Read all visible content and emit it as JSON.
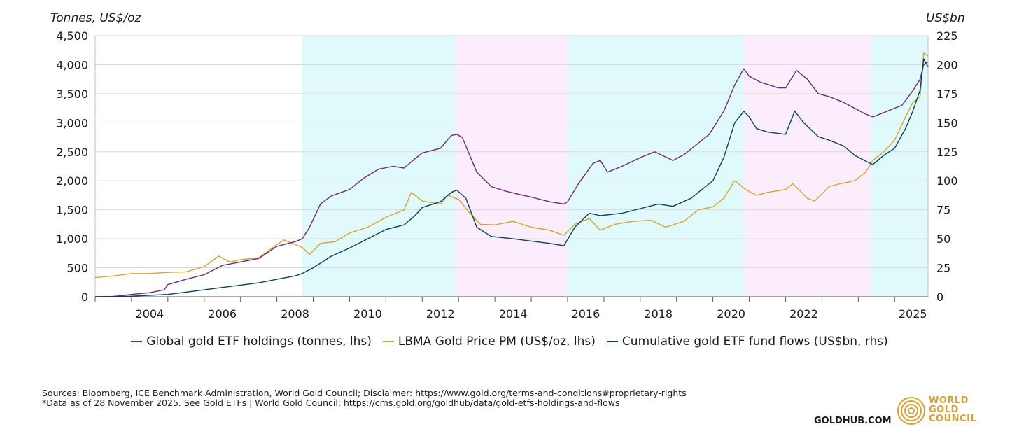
{
  "chart_data": {
    "type": "line",
    "left_axis_title": "Tonnes, US$/oz",
    "right_axis_title": "US$bn",
    "ylim_left": [
      0,
      4500
    ],
    "ylim_right": [
      0,
      225
    ],
    "xlim": [
      2003.0,
      2025.92
    ],
    "left_ticks": [
      "0",
      "500",
      "1,000",
      "1,500",
      "2,000",
      "2,500",
      "3,000",
      "3,500",
      "4,000",
      "4,500"
    ],
    "left_tick_values": [
      0,
      500,
      1000,
      1500,
      2000,
      2500,
      3000,
      3500,
      4000,
      4500
    ],
    "right_ticks": [
      "0",
      "25",
      "50",
      "75",
      "100",
      "125",
      "150",
      "175",
      "200",
      "225"
    ],
    "right_tick_values": [
      0,
      25,
      50,
      75,
      100,
      125,
      150,
      175,
      200,
      225
    ],
    "x_ticks": [
      "2004",
      "2006",
      "2008",
      "2010",
      "2012",
      "2014",
      "2016",
      "2018",
      "2020",
      "2022",
      "2025"
    ],
    "x_tick_values": [
      2004,
      2006,
      2008,
      2010,
      2012,
      2014,
      2016,
      2018,
      2020,
      2022,
      2025
    ],
    "shaded_periods": [
      {
        "start": 2008.7,
        "end": 2012.9,
        "color": "#e0fafb"
      },
      {
        "start": 2012.9,
        "end": 2016.0,
        "color": "#fbedfb"
      },
      {
        "start": 2016.0,
        "end": 2020.85,
        "color": "#e0fafb"
      },
      {
        "start": 2020.85,
        "end": 2024.35,
        "color": "#fbedfb"
      },
      {
        "start": 2024.35,
        "end": 2025.92,
        "color": "#e0fafb"
      }
    ],
    "series": [
      {
        "name": "Global gold ETF holdings (tonnes, lhs)",
        "axis": "left",
        "color": "#6b2c73",
        "points": [
          [
            2003.0,
            0
          ],
          [
            2003.5,
            5
          ],
          [
            2004.0,
            40
          ],
          [
            2004.5,
            70
          ],
          [
            2004.9,
            120
          ],
          [
            2005.0,
            210
          ],
          [
            2005.5,
            300
          ],
          [
            2006.0,
            380
          ],
          [
            2006.5,
            540
          ],
          [
            2007.0,
            600
          ],
          [
            2007.5,
            660
          ],
          [
            2008.0,
            870
          ],
          [
            2008.5,
            950
          ],
          [
            2008.7,
            1000
          ],
          [
            2008.9,
            1200
          ],
          [
            2009.2,
            1600
          ],
          [
            2009.5,
            1740
          ],
          [
            2010.0,
            1850
          ],
          [
            2010.4,
            2050
          ],
          [
            2010.8,
            2200
          ],
          [
            2011.2,
            2250
          ],
          [
            2011.5,
            2220
          ],
          [
            2011.8,
            2380
          ],
          [
            2012.0,
            2480
          ],
          [
            2012.5,
            2560
          ],
          [
            2012.8,
            2780
          ],
          [
            2012.95,
            2800
          ],
          [
            2013.1,
            2750
          ],
          [
            2013.5,
            2150
          ],
          [
            2013.9,
            1900
          ],
          [
            2014.3,
            1820
          ],
          [
            2014.7,
            1760
          ],
          [
            2015.0,
            1720
          ],
          [
            2015.5,
            1640
          ],
          [
            2015.9,
            1600
          ],
          [
            2016.0,
            1640
          ],
          [
            2016.3,
            1950
          ],
          [
            2016.7,
            2300
          ],
          [
            2016.9,
            2350
          ],
          [
            2017.1,
            2150
          ],
          [
            2017.5,
            2250
          ],
          [
            2018.0,
            2400
          ],
          [
            2018.4,
            2500
          ],
          [
            2018.9,
            2350
          ],
          [
            2019.2,
            2450
          ],
          [
            2019.5,
            2600
          ],
          [
            2019.9,
            2800
          ],
          [
            2020.3,
            3200
          ],
          [
            2020.6,
            3650
          ],
          [
            2020.85,
            3930
          ],
          [
            2021.0,
            3800
          ],
          [
            2021.3,
            3700
          ],
          [
            2021.8,
            3600
          ],
          [
            2022.0,
            3600
          ],
          [
            2022.3,
            3900
          ],
          [
            2022.6,
            3750
          ],
          [
            2022.9,
            3500
          ],
          [
            2023.2,
            3450
          ],
          [
            2023.6,
            3350
          ],
          [
            2023.9,
            3250
          ],
          [
            2024.2,
            3150
          ],
          [
            2024.4,
            3100
          ],
          [
            2024.8,
            3200
          ],
          [
            2025.2,
            3300
          ],
          [
            2025.5,
            3550
          ],
          [
            2025.7,
            3750
          ],
          [
            2025.8,
            4000
          ],
          [
            2025.92,
            4050
          ]
        ]
      },
      {
        "name": "LBMA Gold Price PM (US$/oz, lhs)",
        "axis": "left",
        "color": "#d4a336",
        "points": [
          [
            2003.0,
            330
          ],
          [
            2003.5,
            360
          ],
          [
            2004.0,
            400
          ],
          [
            2004.5,
            400
          ],
          [
            2005.0,
            420
          ],
          [
            2005.5,
            430
          ],
          [
            2006.0,
            520
          ],
          [
            2006.4,
            700
          ],
          [
            2006.7,
            600
          ],
          [
            2007.0,
            640
          ],
          [
            2007.5,
            670
          ],
          [
            2008.0,
            900
          ],
          [
            2008.2,
            980
          ],
          [
            2008.7,
            850
          ],
          [
            2008.9,
            730
          ],
          [
            2009.2,
            920
          ],
          [
            2009.6,
            950
          ],
          [
            2010.0,
            1100
          ],
          [
            2010.5,
            1200
          ],
          [
            2011.0,
            1370
          ],
          [
            2011.5,
            1500
          ],
          [
            2011.7,
            1800
          ],
          [
            2012.0,
            1650
          ],
          [
            2012.5,
            1600
          ],
          [
            2012.7,
            1750
          ],
          [
            2013.0,
            1680
          ],
          [
            2013.3,
            1450
          ],
          [
            2013.6,
            1250
          ],
          [
            2014.0,
            1240
          ],
          [
            2014.5,
            1300
          ],
          [
            2015.0,
            1200
          ],
          [
            2015.5,
            1150
          ],
          [
            2015.9,
            1060
          ],
          [
            2016.2,
            1250
          ],
          [
            2016.6,
            1350
          ],
          [
            2016.9,
            1150
          ],
          [
            2017.3,
            1250
          ],
          [
            2017.8,
            1300
          ],
          [
            2018.3,
            1320
          ],
          [
            2018.7,
            1200
          ],
          [
            2019.2,
            1300
          ],
          [
            2019.6,
            1500
          ],
          [
            2020.0,
            1550
          ],
          [
            2020.3,
            1700
          ],
          [
            2020.6,
            2000
          ],
          [
            2020.9,
            1850
          ],
          [
            2021.2,
            1750
          ],
          [
            2021.5,
            1800
          ],
          [
            2022.0,
            1850
          ],
          [
            2022.2,
            1950
          ],
          [
            2022.6,
            1700
          ],
          [
            2022.8,
            1650
          ],
          [
            2023.2,
            1900
          ],
          [
            2023.5,
            1950
          ],
          [
            2023.9,
            2000
          ],
          [
            2024.2,
            2150
          ],
          [
            2024.4,
            2350
          ],
          [
            2024.7,
            2500
          ],
          [
            2025.0,
            2700
          ],
          [
            2025.3,
            3100
          ],
          [
            2025.5,
            3350
          ],
          [
            2025.7,
            3450
          ],
          [
            2025.8,
            4200
          ],
          [
            2025.92,
            4150
          ]
        ]
      },
      {
        "name": "Cumulative gold ETF fund flows (US$bn, rhs)",
        "axis": "right",
        "color": "#0f3f5e",
        "points": [
          [
            2003.0,
            0
          ],
          [
            2004.0,
            0.5
          ],
          [
            2005.0,
            2
          ],
          [
            2005.5,
            4
          ],
          [
            2006.0,
            6
          ],
          [
            2006.5,
            8
          ],
          [
            2007.0,
            10
          ],
          [
            2007.5,
            12
          ],
          [
            2008.0,
            15
          ],
          [
            2008.5,
            18
          ],
          [
            2008.7,
            20
          ],
          [
            2009.0,
            25
          ],
          [
            2009.5,
            35
          ],
          [
            2010.0,
            42
          ],
          [
            2010.5,
            50
          ],
          [
            2011.0,
            58
          ],
          [
            2011.5,
            62
          ],
          [
            2011.8,
            70
          ],
          [
            2012.0,
            77
          ],
          [
            2012.5,
            82
          ],
          [
            2012.8,
            90
          ],
          [
            2012.95,
            92
          ],
          [
            2013.2,
            85
          ],
          [
            2013.5,
            60
          ],
          [
            2013.9,
            52
          ],
          [
            2014.5,
            50
          ],
          [
            2015.0,
            48
          ],
          [
            2015.5,
            46
          ],
          [
            2015.9,
            44
          ],
          [
            2016.2,
            60
          ],
          [
            2016.6,
            72
          ],
          [
            2016.9,
            70
          ],
          [
            2017.5,
            72
          ],
          [
            2018.0,
            76
          ],
          [
            2018.5,
            80
          ],
          [
            2018.9,
            78
          ],
          [
            2019.4,
            85
          ],
          [
            2019.8,
            95
          ],
          [
            2020.0,
            100
          ],
          [
            2020.3,
            120
          ],
          [
            2020.6,
            150
          ],
          [
            2020.85,
            160
          ],
          [
            2021.0,
            155
          ],
          [
            2021.2,
            145
          ],
          [
            2021.5,
            142
          ],
          [
            2022.0,
            140
          ],
          [
            2022.25,
            160
          ],
          [
            2022.5,
            150
          ],
          [
            2022.9,
            138
          ],
          [
            2023.2,
            135
          ],
          [
            2023.6,
            130
          ],
          [
            2023.9,
            122
          ],
          [
            2024.2,
            117
          ],
          [
            2024.4,
            114
          ],
          [
            2024.7,
            122
          ],
          [
            2025.0,
            128
          ],
          [
            2025.3,
            145
          ],
          [
            2025.5,
            160
          ],
          [
            2025.7,
            178
          ],
          [
            2025.8,
            205
          ],
          [
            2025.92,
            198
          ]
        ]
      }
    ]
  },
  "sources_line1": "Sources: Bloomberg, ICE Benchmark Administration, World Gold Council; Disclaimer: https://www.gold.org/terms-and-conditions#proprietary-rights",
  "sources_line2": "*Data as of 28 November 2025. See Gold ETFs | World Gold Council: https://cms.gold.org/goldhub/data/gold-etfs-holdings-and-flows",
  "goldhub": "GOLDHUB.COM",
  "logo_lines": [
    "WORLD",
    "GOLD",
    "COUNCIL"
  ]
}
